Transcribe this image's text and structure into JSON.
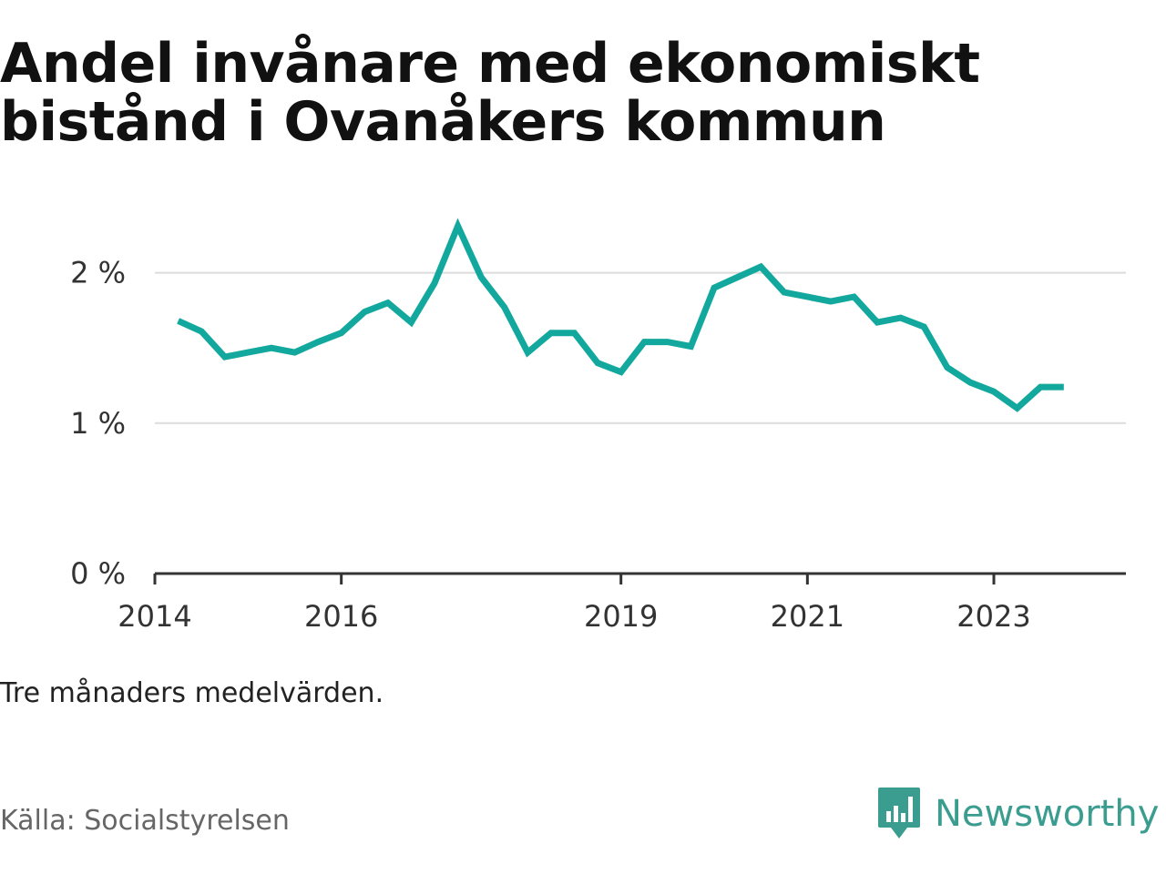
{
  "title": "Andel invånare med ekonomiskt bistånd i Ovanåkers kommun",
  "note": "Tre månaders medelvärden.",
  "source": "Källa: Socialstyrelsen",
  "brand": {
    "name": "Newsworthy",
    "icon": "newsworthy-logo-icon",
    "color": "#3a9d8f"
  },
  "chart_data": {
    "type": "line",
    "title": "Andel invånare med ekonomiskt bistånd i Ovanåkers kommun",
    "xlabel": "",
    "ylabel": "",
    "line_color": "#13a89e",
    "grid": true,
    "ylim": [
      0,
      2.3
    ],
    "yticks": [
      {
        "value": 0,
        "label": "0 %"
      },
      {
        "value": 1,
        "label": "1 %"
      },
      {
        "value": 2,
        "label": "2 %"
      }
    ],
    "xlim": [
      "2014-01",
      "2024-06"
    ],
    "xticks": [
      {
        "value": "2014-01",
        "label": "2014"
      },
      {
        "value": "2016-01",
        "label": "2016"
      },
      {
        "value": "2019-01",
        "label": "2019"
      },
      {
        "value": "2021-01",
        "label": "2021"
      },
      {
        "value": "2023-01",
        "label": "2023"
      }
    ],
    "series": [
      {
        "points": [
          [
            "2014-04",
            1.68
          ],
          [
            "2014-07",
            1.61
          ],
          [
            "2014-10",
            1.44
          ],
          [
            "2015-01",
            1.47
          ],
          [
            "2015-04",
            1.5
          ],
          [
            "2015-07",
            1.47
          ],
          [
            "2015-10",
            1.54
          ],
          [
            "2016-01",
            1.6
          ],
          [
            "2016-04",
            1.74
          ],
          [
            "2016-07",
            1.8
          ],
          [
            "2016-10",
            1.67
          ],
          [
            "2017-01",
            1.93
          ],
          [
            "2017-04",
            2.31
          ],
          [
            "2017-07",
            1.97
          ],
          [
            "2017-10",
            1.77
          ],
          [
            "2018-01",
            1.47
          ],
          [
            "2018-04",
            1.6
          ],
          [
            "2018-07",
            1.6
          ],
          [
            "2018-10",
            1.4
          ],
          [
            "2019-01",
            1.34
          ],
          [
            "2019-04",
            1.54
          ],
          [
            "2019-07",
            1.54
          ],
          [
            "2019-10",
            1.51
          ],
          [
            "2020-01",
            1.9
          ],
          [
            "2020-04",
            1.97
          ],
          [
            "2020-07",
            2.04
          ],
          [
            "2020-10",
            1.87
          ],
          [
            "2021-01",
            1.84
          ],
          [
            "2021-04",
            1.81
          ],
          [
            "2021-07",
            1.84
          ],
          [
            "2021-10",
            1.67
          ],
          [
            "2022-01",
            1.7
          ],
          [
            "2022-04",
            1.64
          ],
          [
            "2022-07",
            1.37
          ],
          [
            "2022-10",
            1.27
          ],
          [
            "2023-01",
            1.21
          ],
          [
            "2023-04",
            1.1
          ],
          [
            "2023-07",
            1.24
          ],
          [
            "2023-10",
            1.24
          ]
        ]
      }
    ]
  }
}
